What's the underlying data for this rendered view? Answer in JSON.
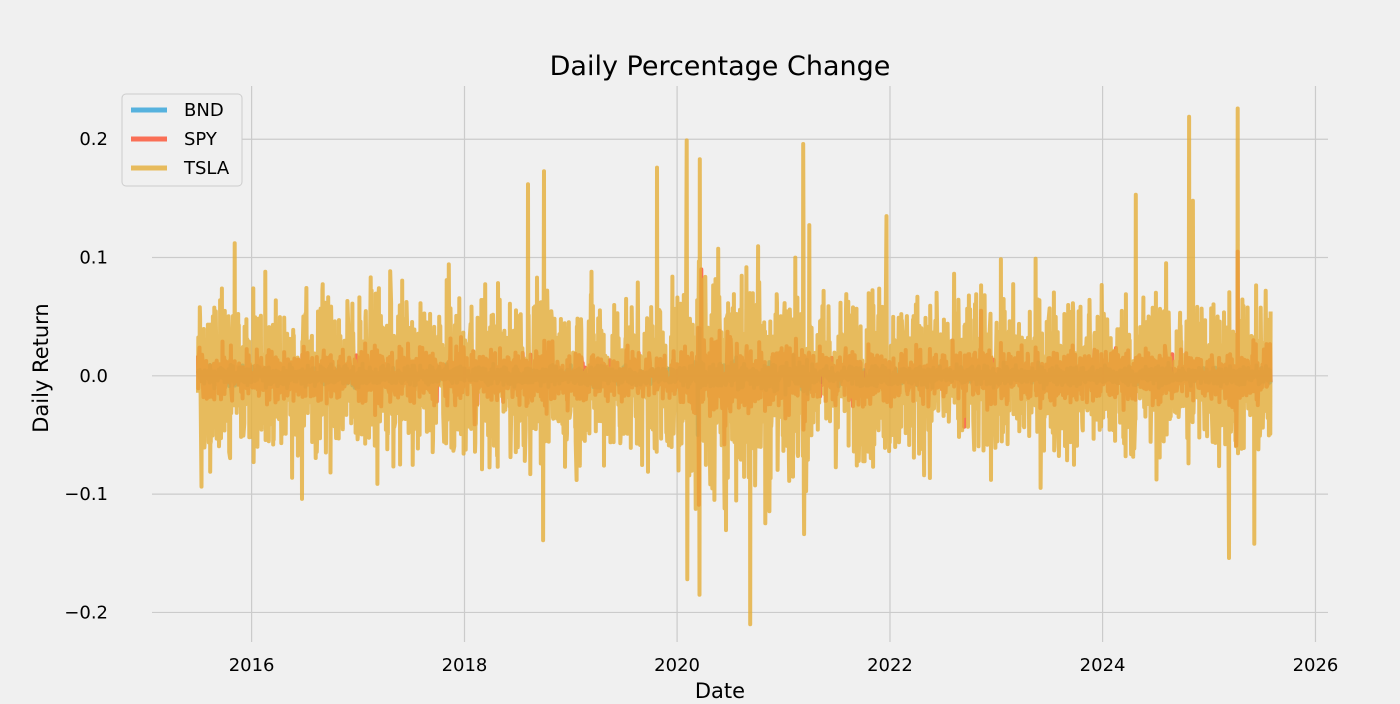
{
  "chart_data": {
    "type": "line",
    "title": "Daily Percentage Change",
    "xlabel": "Date",
    "ylabel": "Daily Return",
    "xlim": [
      "2015-01-24",
      "2026-02-13"
    ],
    "ylim": [
      -0.225,
      0.245
    ],
    "x_ticks": [
      "2016",
      "2018",
      "2020",
      "2022",
      "2024",
      "2026"
    ],
    "y_ticks": [
      {
        "value": -0.2,
        "label": "−0.2"
      },
      {
        "value": -0.1,
        "label": "−0.1"
      },
      {
        "value": 0.0,
        "label": "0.0"
      },
      {
        "value": 0.1,
        "label": "0.1"
      },
      {
        "value": 0.2,
        "label": "0.2"
      }
    ],
    "grid": true,
    "legend_position": "top-left",
    "x_range": [
      "2015-07-01",
      "2025-07-31"
    ],
    "sampling_note": "Approximate reconstruction of dense daily series; notable extremes of the TSLA series are listed explicitly.",
    "series": [
      {
        "name": "BND",
        "color": "#30a2da",
        "amplitude": 0.004,
        "extremes": [
          {
            "x": "2020-03-12",
            "y": -0.05
          },
          {
            "x": "2020-03-18",
            "y": 0.04
          }
        ]
      },
      {
        "name": "SPY",
        "color": "#fc4f30",
        "amplitude": 0.011,
        "extremes": [
          {
            "x": "2016-11-09",
            "y": 0.022
          },
          {
            "x": "2018-02-05",
            "y": -0.041
          },
          {
            "x": "2018-10-10",
            "y": -0.032
          },
          {
            "x": "2020-03-16",
            "y": -0.109
          },
          {
            "x": "2020-03-24",
            "y": 0.09
          },
          {
            "x": "2020-06-11",
            "y": -0.058
          },
          {
            "x": "2022-09-13",
            "y": -0.043
          },
          {
            "x": "2022-11-10",
            "y": 0.055
          },
          {
            "x": "2025-04-04",
            "y": -0.059
          },
          {
            "x": "2025-04-09",
            "y": 0.105
          }
        ]
      },
      {
        "name": "TSLA",
        "color": "#e5ae38",
        "amplitude": 0.035,
        "extremes": [
          {
            "x": "2015-11-04",
            "y": 0.112
          },
          {
            "x": "2016-02-17",
            "y": 0.088
          },
          {
            "x": "2016-06-22",
            "y": -0.104
          },
          {
            "x": "2018-08-07",
            "y": 0.162
          },
          {
            "x": "2018-09-28",
            "y": -0.139
          },
          {
            "x": "2018-10-01",
            "y": 0.173
          },
          {
            "x": "2019-10-24",
            "y": 0.176
          },
          {
            "x": "2020-02-03",
            "y": 0.199
          },
          {
            "x": "2020-02-05",
            "y": -0.172
          },
          {
            "x": "2020-03-18",
            "y": -0.185
          },
          {
            "x": "2020-03-19",
            "y": 0.183
          },
          {
            "x": "2020-09-08",
            "y": -0.21
          },
          {
            "x": "2021-03-09",
            "y": 0.196
          },
          {
            "x": "2021-12-20",
            "y": 0.135
          },
          {
            "x": "2024-04-24",
            "y": 0.153
          },
          {
            "x": "2024-10-24",
            "y": 0.219
          },
          {
            "x": "2024-11-06",
            "y": 0.148
          },
          {
            "x": "2025-03-10",
            "y": -0.154
          },
          {
            "x": "2025-04-09",
            "y": 0.226
          },
          {
            "x": "2025-06-05",
            "y": -0.142
          }
        ]
      }
    ]
  }
}
